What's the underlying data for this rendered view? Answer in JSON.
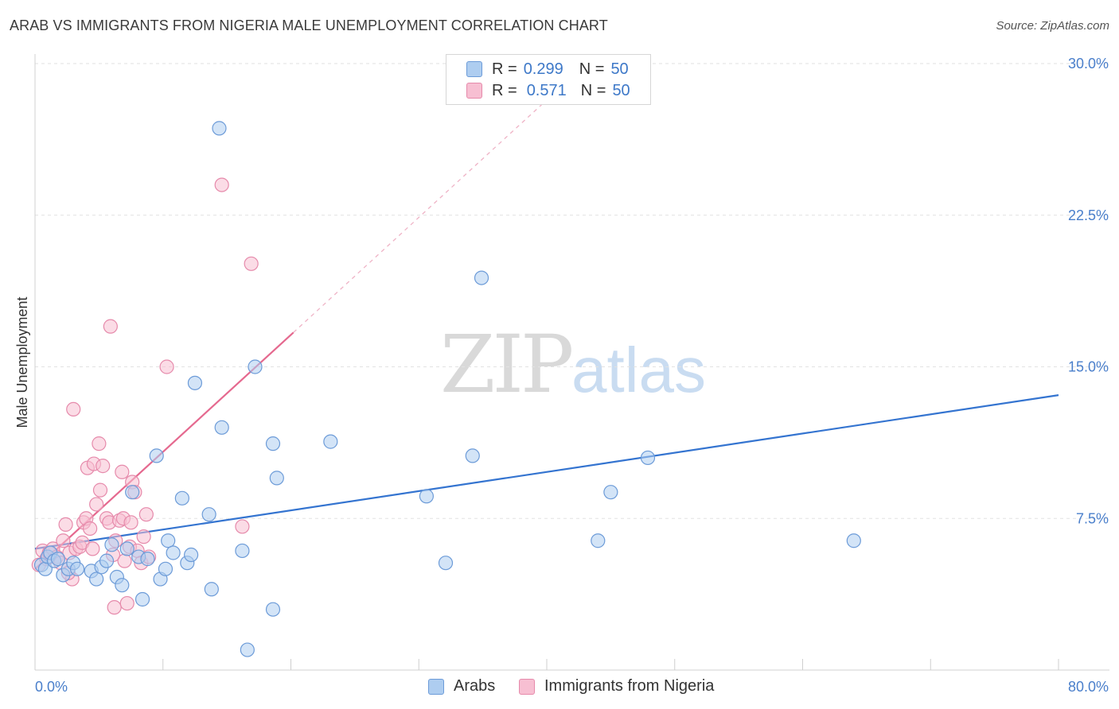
{
  "title": "ARAB VS IMMIGRANTS FROM NIGERIA MALE UNEMPLOYMENT CORRELATION CHART",
  "source": "Source: ZipAtlas.com",
  "watermark": {
    "zip": "ZIP",
    "atlas": "atlas"
  },
  "legend": {
    "rows": [
      {
        "r_label": "R =",
        "r_value": "0.299",
        "n_label": "N =",
        "n_value": "50"
      },
      {
        "r_label": "R =",
        "r_value": "0.571",
        "n_label": "N =",
        "n_value": "50"
      }
    ]
  },
  "bottom_legend": {
    "arabs": "Arabs",
    "nigeria": "Immigrants from Nigeria"
  },
  "colors": {
    "blue_fill": "#aecdf0",
    "blue_stroke": "#6c9bd8",
    "blue_line": "#3474d0",
    "pink_fill": "#f7bfd2",
    "pink_stroke": "#e68aab",
    "pink_line": "#e5698f",
    "grid": "#e2e2e2",
    "tick_text": "#4a7fcb"
  },
  "chart_data": {
    "type": "scatter",
    "title": "ARAB VS IMMIGRANTS FROM NIGERIA MALE UNEMPLOYMENT CORRELATION CHART",
    "xlabel": "",
    "ylabel": "Male Unemployment",
    "xlim": [
      0,
      80
    ],
    "ylim": [
      0,
      30
    ],
    "x_tick_labels": [
      "0.0%",
      "80.0%"
    ],
    "y_ticks": [
      7.5,
      15.0,
      22.5,
      30.0
    ],
    "y_tick_labels": [
      "7.5%",
      "15.0%",
      "22.5%",
      "30.0%"
    ],
    "series": [
      {
        "name": "Arabs",
        "r": 0.299,
        "n": 50,
        "trend": {
          "x": [
            0,
            80
          ],
          "y": [
            6.0,
            13.6
          ],
          "style": "solid"
        },
        "points": [
          [
            0.5,
            5.2
          ],
          [
            0.8,
            5.0
          ],
          [
            1.0,
            5.6
          ],
          [
            1.2,
            5.8
          ],
          [
            1.5,
            5.4
          ],
          [
            1.8,
            5.5
          ],
          [
            2.2,
            4.7
          ],
          [
            2.6,
            5.0
          ],
          [
            3.0,
            5.3
          ],
          [
            3.3,
            5.0
          ],
          [
            4.4,
            4.9
          ],
          [
            4.8,
            4.5
          ],
          [
            5.2,
            5.1
          ],
          [
            5.6,
            5.4
          ],
          [
            6.0,
            6.2
          ],
          [
            6.4,
            4.6
          ],
          [
            6.8,
            4.2
          ],
          [
            7.2,
            6.0
          ],
          [
            7.6,
            8.8
          ],
          [
            8.1,
            5.6
          ],
          [
            8.4,
            3.5
          ],
          [
            8.8,
            5.5
          ],
          [
            9.5,
            10.6
          ],
          [
            9.8,
            4.5
          ],
          [
            10.2,
            5.0
          ],
          [
            10.4,
            6.4
          ],
          [
            10.8,
            5.8
          ],
          [
            11.5,
            8.5
          ],
          [
            11.9,
            5.3
          ],
          [
            12.2,
            5.7
          ],
          [
            12.5,
            14.2
          ],
          [
            13.6,
            7.7
          ],
          [
            13.8,
            4.0
          ],
          [
            14.4,
            26.8
          ],
          [
            14.6,
            12.0
          ],
          [
            16.2,
            5.9
          ],
          [
            16.6,
            1.0
          ],
          [
            17.2,
            15.0
          ],
          [
            18.6,
            11.2
          ],
          [
            18.6,
            3.0
          ],
          [
            18.9,
            9.5
          ],
          [
            23.1,
            11.3
          ],
          [
            30.6,
            8.6
          ],
          [
            32.1,
            5.3
          ],
          [
            34.2,
            10.6
          ],
          [
            34.9,
            19.4
          ],
          [
            44.0,
            6.4
          ],
          [
            45.0,
            8.8
          ],
          [
            47.9,
            10.5
          ],
          [
            64.0,
            6.4
          ]
        ]
      },
      {
        "name": "Immigrants from Nigeria",
        "r": 0.571,
        "n": 50,
        "trend": {
          "x": [
            0,
            20.2
          ],
          "y": [
            5.0,
            16.7
          ],
          "style": "solid",
          "extension": {
            "x": [
              20.2,
              40.0
            ],
            "y": [
              16.7,
              28.2
            ],
            "style": "dashed"
          }
        },
        "points": [
          [
            0.3,
            5.2
          ],
          [
            0.6,
            5.9
          ],
          [
            0.9,
            5.5
          ],
          [
            1.1,
            5.8
          ],
          [
            1.4,
            6.0
          ],
          [
            1.7,
            5.6
          ],
          [
            2.0,
            5.3
          ],
          [
            2.2,
            6.4
          ],
          [
            2.4,
            7.2
          ],
          [
            2.7,
            5.8
          ],
          [
            2.9,
            4.5
          ],
          [
            3.0,
            12.9
          ],
          [
            3.2,
            6.0
          ],
          [
            3.5,
            6.1
          ],
          [
            3.7,
            6.3
          ],
          [
            3.8,
            7.3
          ],
          [
            4.0,
            7.5
          ],
          [
            4.1,
            10.0
          ],
          [
            4.3,
            7.0
          ],
          [
            4.5,
            6.0
          ],
          [
            4.6,
            10.2
          ],
          [
            4.8,
            8.2
          ],
          [
            5.0,
            11.2
          ],
          [
            5.1,
            8.9
          ],
          [
            5.3,
            10.1
          ],
          [
            5.6,
            7.5
          ],
          [
            5.8,
            7.3
          ],
          [
            5.9,
            17.0
          ],
          [
            6.2,
            3.1
          ],
          [
            6.3,
            6.4
          ],
          [
            6.6,
            7.4
          ],
          [
            6.8,
            9.8
          ],
          [
            6.9,
            7.5
          ],
          [
            7.0,
            5.4
          ],
          [
            7.2,
            3.3
          ],
          [
            7.4,
            6.1
          ],
          [
            7.5,
            7.3
          ],
          [
            7.6,
            9.3
          ],
          [
            7.8,
            8.8
          ],
          [
            8.0,
            5.9
          ],
          [
            8.3,
            5.3
          ],
          [
            8.5,
            6.6
          ],
          [
            8.7,
            7.7
          ],
          [
            8.9,
            5.6
          ],
          [
            10.3,
            15.0
          ],
          [
            14.6,
            24.0
          ],
          [
            16.2,
            7.1
          ],
          [
            16.9,
            20.1
          ],
          [
            6.1,
            5.7
          ],
          [
            2.6,
            4.8
          ]
        ]
      }
    ]
  }
}
